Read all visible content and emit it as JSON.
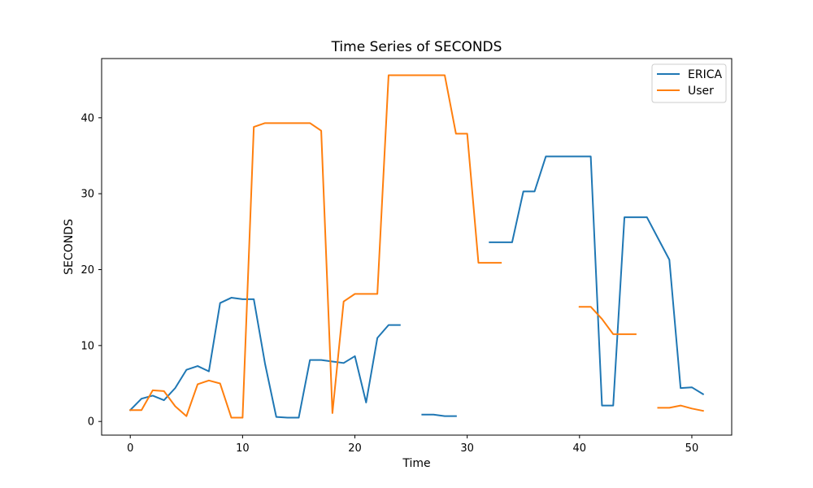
{
  "chart_data": {
    "type": "line",
    "title": "Time Series of SECONDS",
    "xlabel": "Time",
    "ylabel": "SECONDS",
    "xlim": [
      -2.55,
      53.55
    ],
    "ylim": [
      -1.8,
      47.8
    ],
    "xticks": [
      0,
      10,
      20,
      30,
      40,
      50
    ],
    "yticks": [
      0,
      10,
      20,
      30,
      40
    ],
    "grid": false,
    "legend_position": "top-right",
    "series": [
      {
        "name": "ERICA",
        "color": "#1f77b4",
        "points": [
          [
            0,
            1.5
          ],
          [
            1,
            3.0
          ],
          [
            2,
            3.4
          ],
          [
            3,
            2.8
          ],
          [
            4,
            4.4
          ],
          [
            5,
            6.8
          ],
          [
            6,
            7.3
          ],
          [
            7,
            6.6
          ],
          [
            8,
            15.6
          ],
          [
            9,
            16.3
          ],
          [
            10,
            16.1
          ],
          [
            11,
            16.1
          ],
          [
            12,
            7.6
          ],
          [
            13,
            0.6
          ],
          [
            14,
            0.5
          ],
          [
            15,
            0.5
          ],
          [
            16,
            8.1
          ],
          [
            17,
            8.1
          ],
          [
            18,
            7.9
          ],
          [
            19,
            7.7
          ],
          [
            20,
            8.6
          ],
          [
            21,
            2.5
          ],
          [
            22,
            11.0
          ],
          [
            23,
            12.7
          ],
          [
            24,
            12.7
          ],
          [
            25,
            null
          ],
          [
            26,
            0.9
          ],
          [
            27,
            0.9
          ],
          [
            28,
            0.7
          ],
          [
            29,
            0.7
          ],
          [
            30,
            null
          ],
          [
            31,
            null
          ],
          [
            32,
            23.6
          ],
          [
            33,
            23.6
          ],
          [
            34,
            23.6
          ],
          [
            35,
            30.3
          ],
          [
            36,
            30.3
          ],
          [
            37,
            34.9
          ],
          [
            38,
            34.9
          ],
          [
            39,
            34.9
          ],
          [
            40,
            34.9
          ],
          [
            41,
            34.9
          ],
          [
            42,
            2.1
          ],
          [
            43,
            2.1
          ],
          [
            44,
            26.9
          ],
          [
            45,
            26.9
          ],
          [
            46,
            26.9
          ],
          [
            47,
            24.1
          ],
          [
            48,
            21.3
          ],
          [
            49,
            4.4
          ],
          [
            50,
            4.5
          ],
          [
            51,
            3.6
          ]
        ]
      },
      {
        "name": "User",
        "color": "#ff7f0e",
        "points": [
          [
            0,
            1.5
          ],
          [
            1,
            1.5
          ],
          [
            2,
            4.1
          ],
          [
            3,
            4.0
          ],
          [
            4,
            2.0
          ],
          [
            5,
            0.7
          ],
          [
            6,
            4.9
          ],
          [
            7,
            5.4
          ],
          [
            8,
            5.0
          ],
          [
            9,
            0.5
          ],
          [
            10,
            0.5
          ],
          [
            11,
            38.8
          ],
          [
            12,
            39.3
          ],
          [
            13,
            39.3
          ],
          [
            14,
            39.3
          ],
          [
            15,
            39.3
          ],
          [
            16,
            39.3
          ],
          [
            17,
            38.3
          ],
          [
            18,
            1.1
          ],
          [
            19,
            15.8
          ],
          [
            20,
            16.8
          ],
          [
            21,
            16.8
          ],
          [
            22,
            16.8
          ],
          [
            23,
            45.6
          ],
          [
            24,
            45.6
          ],
          [
            25,
            45.6
          ],
          [
            26,
            45.6
          ],
          [
            27,
            45.6
          ],
          [
            28,
            45.6
          ],
          [
            29,
            37.9
          ],
          [
            30,
            37.9
          ],
          [
            31,
            20.9
          ],
          [
            32,
            20.9
          ],
          [
            33,
            20.9
          ],
          [
            34,
            null
          ],
          [
            35,
            null
          ],
          [
            36,
            null
          ],
          [
            37,
            null
          ],
          [
            38,
            null
          ],
          [
            39,
            null
          ],
          [
            40,
            15.1
          ],
          [
            41,
            15.1
          ],
          [
            42,
            13.5
          ],
          [
            43,
            11.5
          ],
          [
            44,
            11.5
          ],
          [
            45,
            11.5
          ],
          [
            46,
            null
          ],
          [
            47,
            1.8
          ],
          [
            48,
            1.8
          ],
          [
            49,
            2.1
          ],
          [
            50,
            1.7
          ],
          [
            51,
            1.4
          ]
        ]
      }
    ]
  }
}
